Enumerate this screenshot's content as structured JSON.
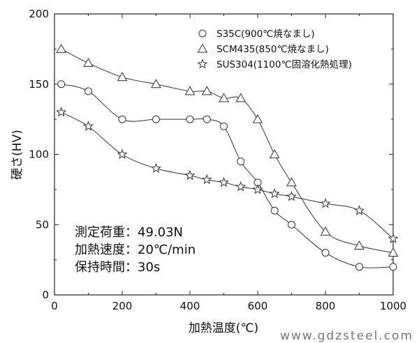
{
  "chart_data": {
    "type": "line",
    "xlabel": "加熱温度(℃)",
    "ylabel": "硬さ(HV)",
    "xlim": [
      0,
      1000
    ],
    "ylim": [
      0,
      200
    ],
    "xticks": [
      0,
      200,
      400,
      600,
      800,
      1000
    ],
    "yticks": [
      0,
      50,
      100,
      150,
      200
    ],
    "grid": false,
    "legend_position": "top-right",
    "series": [
      {
        "name": "S35C(900℃焼なまし)",
        "marker": "circle",
        "x": [
          20,
          100,
          200,
          300,
          400,
          450,
          500,
          550,
          600,
          650,
          700,
          800,
          900,
          1000
        ],
        "y": [
          150,
          145,
          125,
          125,
          125,
          125,
          120,
          95,
          80,
          60,
          50,
          30,
          20,
          20
        ]
      },
      {
        "name": "SCM435(850℃焼なまし)",
        "marker": "triangle",
        "x": [
          20,
          100,
          200,
          300,
          400,
          450,
          500,
          550,
          600,
          650,
          700,
          800,
          900,
          1000
        ],
        "y": [
          175,
          165,
          155,
          150,
          145,
          145,
          140,
          140,
          125,
          100,
          80,
          45,
          35,
          30
        ]
      },
      {
        "name": "SUS304(1100℃固溶化熱処理)",
        "marker": "star",
        "x": [
          20,
          100,
          200,
          300,
          400,
          450,
          500,
          550,
          600,
          650,
          700,
          800,
          900,
          1000
        ],
        "y": [
          130,
          120,
          100,
          90,
          85,
          82,
          80,
          77,
          75,
          72,
          70,
          65,
          60,
          40
        ]
      }
    ],
    "annotations": [
      "測定荷重：49.03N",
      "加熱速度：20℃/min",
      "保持時間：30s"
    ]
  },
  "watermark": "www.gdzsteel.com"
}
